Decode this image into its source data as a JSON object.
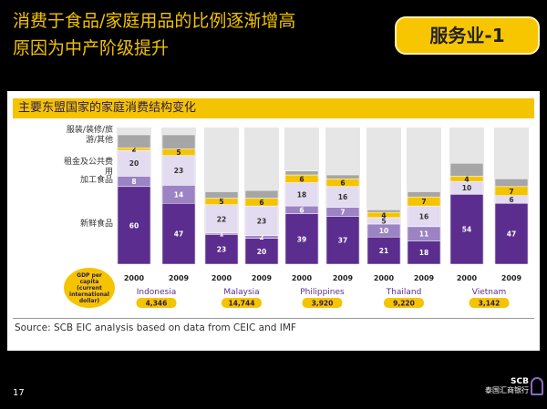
{
  "title_lines": [
    "消费于食品/家庭用品的比例逐渐增高",
    "原因为中产阶级提升"
  ],
  "badge": "服务业-1",
  "panel_title": "主要东盟国家的家庭消费结构变化",
  "gdp_caption": "GDP per capita (current international dollar)",
  "source": "Source: SCB EIC analysis based on data from CEIC and IMF",
  "page_number": "17",
  "logo": {
    "name": "SCB",
    "subtitle": "泰国汇商银行"
  },
  "chart_data": {
    "type": "stacked_bar",
    "categories": [
      "2000",
      "2009",
      "2000",
      "2009",
      "2000",
      "2009",
      "2000",
      "2009",
      "2000",
      "2009"
    ],
    "groups": [
      {
        "name": "Indonesia",
        "gdp": "4,346"
      },
      {
        "name": "Malaysia",
        "gdp": "14,744"
      },
      {
        "name": "Philippines",
        "gdp": "3,920"
      },
      {
        "name": "Thailand",
        "gdp": "9,220"
      },
      {
        "name": "Vietnam",
        "gdp": "3,142"
      }
    ],
    "ylim": [
      0,
      100
    ],
    "series": [
      {
        "name": "新鲜食品",
        "color": "#5b2d8e",
        "values": [
          60,
          47,
          23,
          20,
          39,
          37,
          21,
          18,
          54,
          47
        ]
      },
      {
        "name": "加工食品",
        "color": "#9b83c4",
        "values": [
          8,
          14,
          1,
          2,
          6,
          7,
          10,
          11,
          0,
          0
        ]
      },
      {
        "name": "租金及公共费用",
        "color": "#e3dbf0",
        "values": [
          20,
          23,
          22,
          23,
          18,
          16,
          5,
          16,
          10,
          6
        ]
      },
      {
        "name": "服装/装修/旅游/其他",
        "color": "#f5c400",
        "values": [
          2,
          5,
          5,
          6,
          6,
          6,
          4,
          7,
          4,
          7
        ]
      },
      {
        "color": "#a6a6a6",
        "values": [
          10,
          11,
          5,
          6,
          3,
          3,
          2,
          4,
          10,
          6
        ]
      }
    ]
  }
}
